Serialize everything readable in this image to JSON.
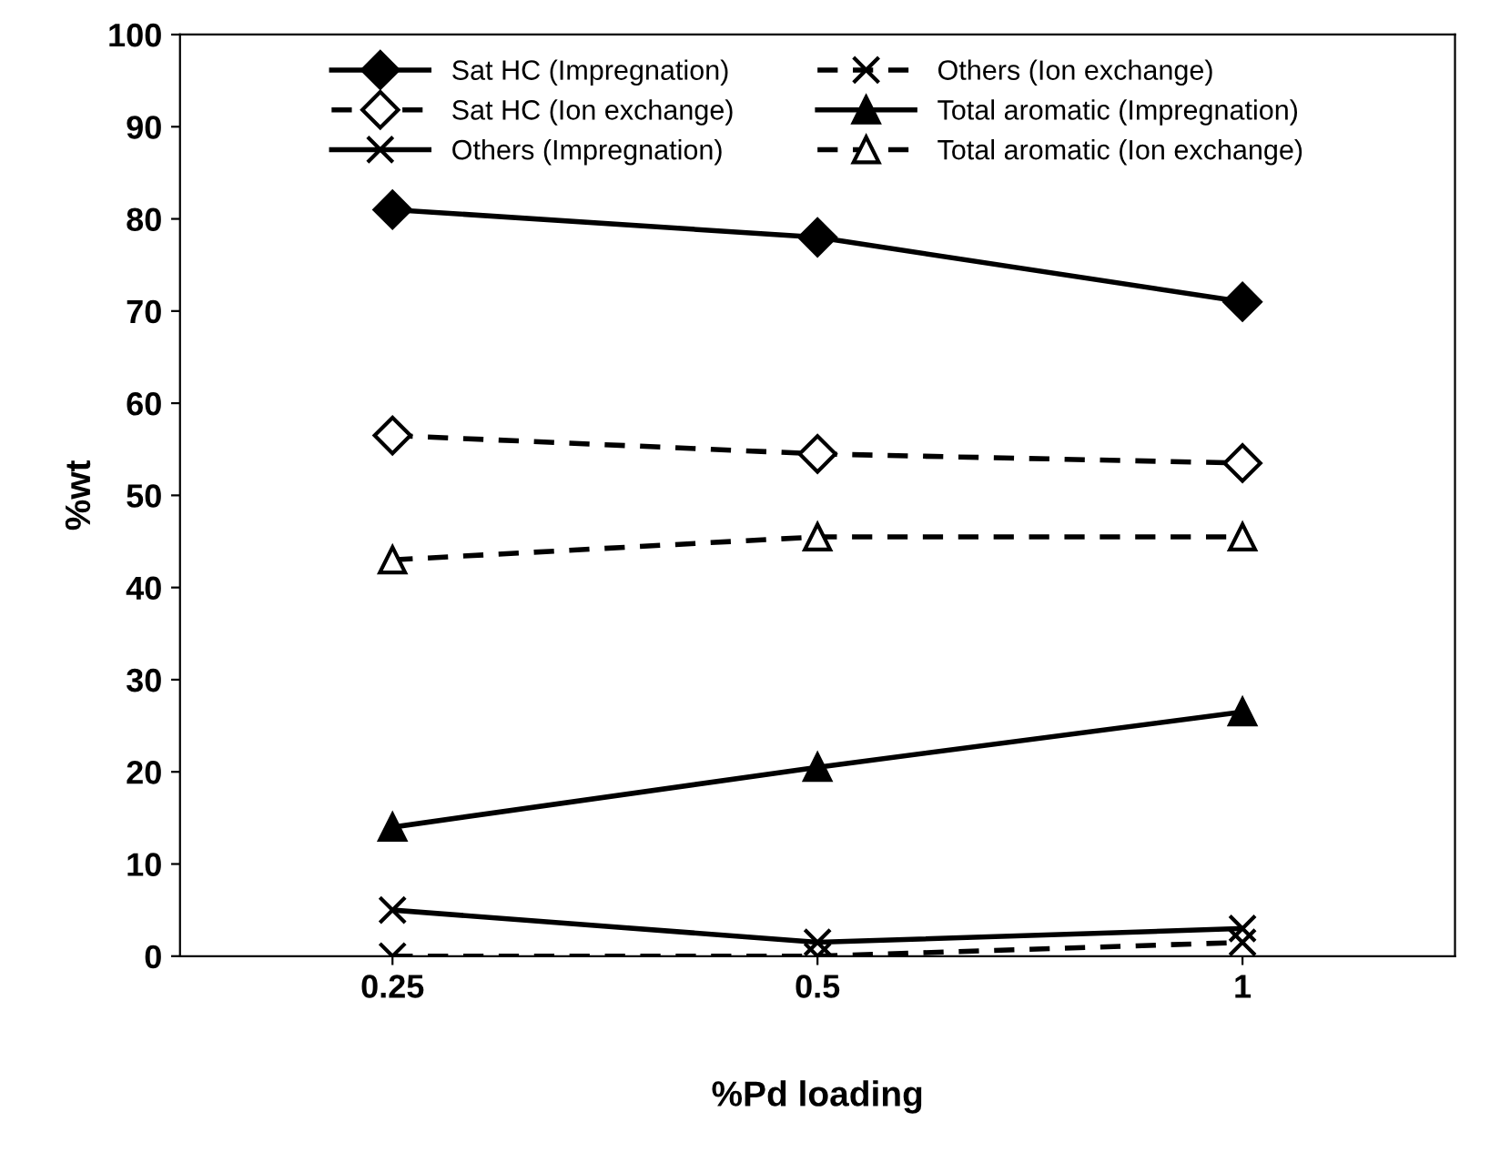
{
  "chart_data": {
    "type": "line",
    "xlabel": "%Pd loading",
    "ylabel": "%wt",
    "categories": [
      "0.25",
      "0.5",
      "1"
    ],
    "series": [
      {
        "name": "Sat HC (Impregnation)",
        "color": "#000000",
        "marker": "diamond",
        "line_style": "solid",
        "values": [
          81,
          78,
          71
        ]
      },
      {
        "name": "Sat HC (Ion exchange)",
        "color": "#000000",
        "marker": "diamond",
        "line_style": "dashed",
        "values": [
          56.5,
          54.5,
          53.5
        ]
      },
      {
        "name": "Others (Impregnation)",
        "color": "#000000",
        "marker": "cross",
        "line_style": "solid",
        "values": [
          5,
          1.5,
          3
        ]
      },
      {
        "name": "Others (Ion exchange)",
        "color": "#000000",
        "marker": "cross",
        "line_style": "dashed",
        "values": [
          0,
          0,
          1.5
        ]
      },
      {
        "name": "Total aromatic (Impregnation)",
        "color": "#000000",
        "marker": "triangle",
        "line_style": "solid",
        "values": [
          14,
          20.5,
          26.5
        ]
      },
      {
        "name": "Total aromatic (Ion exchange)",
        "color": "#000000",
        "marker": "triangle",
        "line_style": "dashed",
        "values": [
          43,
          45.5,
          45.5
        ]
      }
    ],
    "ylim": [
      0,
      100
    ],
    "yticks": [
      0,
      10,
      20,
      30,
      40,
      50,
      60,
      70,
      80,
      90,
      100
    ],
    "grid": false,
    "legend": "top"
  }
}
